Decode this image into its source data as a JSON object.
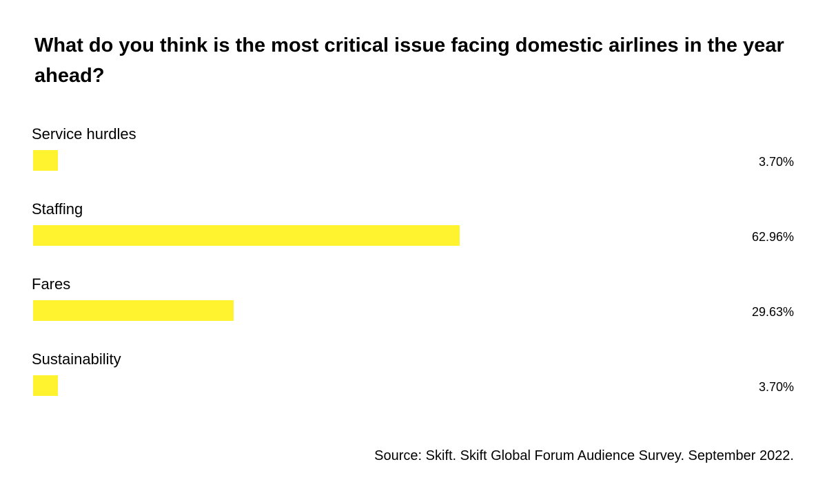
{
  "chart_data": {
    "type": "bar",
    "orientation": "horizontal",
    "title": "What do you think is the most critical issue facing domestic airlines in the year ahead?",
    "categories": [
      "Service hurdles",
      "Staffing",
      "Fares",
      "Sustainability"
    ],
    "values": [
      3.7,
      62.96,
      29.63,
      3.7
    ],
    "value_labels": [
      "3.70%",
      "62.96%",
      "29.63%",
      "3.70%"
    ],
    "xlim": [
      0,
      100
    ],
    "grid": false,
    "bar_color": "#fff22e"
  },
  "source": "Source: Skift. Skift Global Forum Audience Survey. September 2022."
}
